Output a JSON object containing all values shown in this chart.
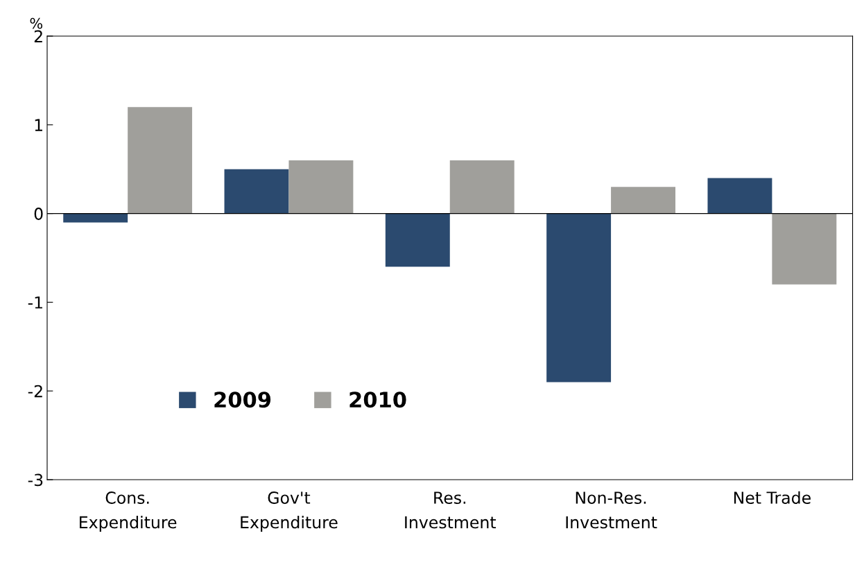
{
  "chart_data": {
    "type": "bar",
    "ylabel": "%",
    "categories": [
      "Cons.\nExpenditure",
      "Gov't\nExpenditure",
      "Res.\nInvestment",
      "Non-Res.\nInvestment",
      "Net Trade"
    ],
    "series": [
      {
        "name": "2009",
        "color": "#2b4a6f",
        "values": [
          -0.1,
          0.5,
          -0.6,
          -1.9,
          0.4
        ]
      },
      {
        "name": "2010",
        "color": "#a09f9b",
        "values": [
          1.2,
          0.6,
          0.6,
          0.3,
          -0.8
        ]
      }
    ],
    "ylim": [
      -3,
      2
    ],
    "yticks": [
      -3,
      -2,
      -1,
      0,
      1,
      2
    ],
    "ref_lines": [
      {
        "axis": "y",
        "value": 0,
        "color": "#000000"
      }
    ],
    "legend": "bottom left"
  }
}
